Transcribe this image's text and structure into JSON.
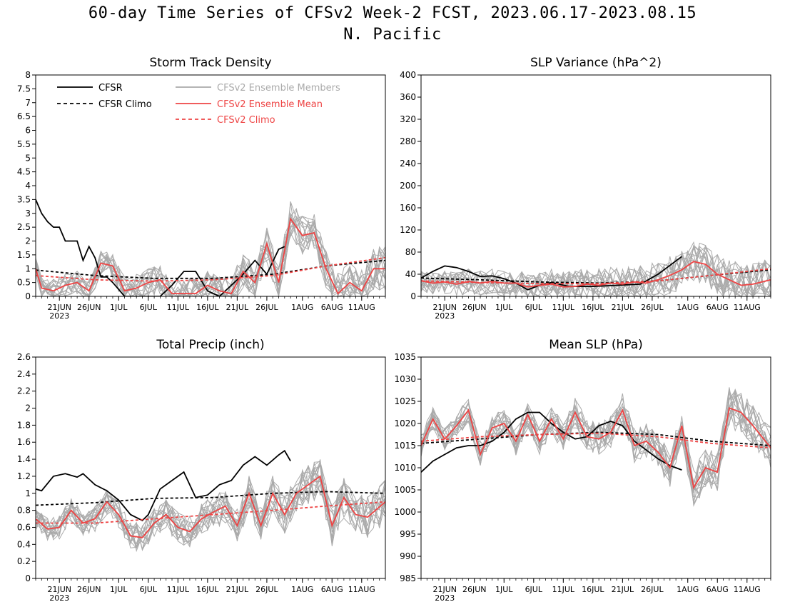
{
  "figure": {
    "title": "60-day Time Series of CFSv2 Week-2 FCST, 2023.06.17-2023.08.15",
    "region": "N. Pacific"
  },
  "colors": {
    "cfsr": "#000000",
    "cfsr_climo": "#000000",
    "members": "#aaaaaa",
    "ensemble_mean": "#ee4444",
    "cfsv2_climo": "#ee4444"
  },
  "legend": {
    "cfsr": "CFSR",
    "cfsr_climo": "CFSR Climo",
    "members": "CFSv2 Ensemble Members",
    "ensemble_mean": "CFSv2 Ensemble Mean",
    "cfsv2_climo": "CFSv2 Climo"
  },
  "x_axis": {
    "start_date": "2023-06-17",
    "end_date": "2023-08-15",
    "tick_labels": [
      "21JUN",
      "26JUN",
      "1JUL",
      "6JUL",
      "11JUL",
      "16JUL",
      "21JUL",
      "26JUL",
      "1AUG",
      "6AUG",
      "11AUG"
    ],
    "tick_dates": [
      "2023-06-21",
      "2023-06-26",
      "2023-07-01",
      "2023-07-06",
      "2023-07-11",
      "2023-07-16",
      "2023-07-21",
      "2023-07-26",
      "2023-08-01",
      "2023-08-06",
      "2023-08-11"
    ],
    "year_label": "2023"
  },
  "chart_data": [
    {
      "type": "line",
      "title": "Storm Track Density",
      "ylim": [
        0,
        8
      ],
      "yticks": [
        "0",
        "0.5",
        "1",
        "1.5",
        "2",
        "2.5",
        "3",
        "3.5",
        "4",
        "4.5",
        "5",
        "5.5",
        "6",
        "6.5",
        "7",
        "7.5",
        "8"
      ],
      "grid": false,
      "legend_placement": "top-left",
      "series": [
        {
          "name": "CFSR",
          "style": "solid",
          "color": "#000000",
          "x": [
            "2023-06-17",
            "2023-06-18",
            "2023-06-19",
            "2023-06-20",
            "2023-06-21",
            "2023-06-22",
            "2023-06-23",
            "2023-06-24",
            "2023-06-25",
            "2023-06-26",
            "2023-06-27",
            "2023-06-28",
            "2023-06-29",
            "2023-06-30",
            "2023-07-02",
            "2023-07-04",
            "2023-07-06",
            "2023-07-08",
            "2023-07-10",
            "2023-07-12",
            "2023-07-14",
            "2023-07-16",
            "2023-07-18",
            "2023-07-20",
            "2023-07-22",
            "2023-07-24",
            "2023-07-26",
            "2023-07-28",
            "2023-07-29"
          ],
          "y": [
            3.5,
            3.0,
            2.7,
            2.5,
            2.5,
            2.0,
            2.0,
            2.0,
            1.3,
            1.8,
            1.4,
            0.7,
            0.7,
            0.5,
            0.0,
            0.0,
            0.0,
            0.0,
            0.4,
            0.9,
            0.9,
            0.2,
            0.0,
            0.4,
            0.8,
            1.3,
            0.8,
            1.7,
            1.8
          ]
        },
        {
          "name": "CFSR Climo",
          "style": "dashed",
          "color": "#000000",
          "x": [
            "2023-06-17",
            "2023-06-27",
            "2023-07-07",
            "2023-07-17",
            "2023-07-27",
            "2023-08-05",
            "2023-08-15"
          ],
          "y": [
            0.95,
            0.75,
            0.65,
            0.65,
            0.8,
            1.1,
            1.3
          ]
        },
        {
          "name": "CFSv2 Ensemble Mean",
          "style": "solid",
          "color": "#ee4444",
          "x": [
            "2023-06-17",
            "2023-06-18",
            "2023-06-20",
            "2023-06-22",
            "2023-06-24",
            "2023-06-26",
            "2023-06-28",
            "2023-06-30",
            "2023-07-02",
            "2023-07-04",
            "2023-07-06",
            "2023-07-08",
            "2023-07-10",
            "2023-07-12",
            "2023-07-14",
            "2023-07-16",
            "2023-07-18",
            "2023-07-20",
            "2023-07-22",
            "2023-07-24",
            "2023-07-26",
            "2023-07-28",
            "2023-07-30",
            "2023-08-01",
            "2023-08-03",
            "2023-08-05",
            "2023-08-07",
            "2023-08-09",
            "2023-08-11",
            "2023-08-13",
            "2023-08-15"
          ],
          "y": [
            1.0,
            0.3,
            0.2,
            0.4,
            0.5,
            0.2,
            1.2,
            1.1,
            0.2,
            0.3,
            0.5,
            0.6,
            0.1,
            0.1,
            0.1,
            0.4,
            0.2,
            0.1,
            0.9,
            0.5,
            1.9,
            0.5,
            2.8,
            2.2,
            2.3,
            1.0,
            0.1,
            0.5,
            0.2,
            1.0,
            1.0
          ]
        },
        {
          "name": "CFSv2 Climo",
          "style": "dashed",
          "color": "#ee4444",
          "x": [
            "2023-06-17",
            "2023-06-27",
            "2023-07-07",
            "2023-07-17",
            "2023-07-27",
            "2023-08-05",
            "2023-08-15"
          ],
          "y": [
            0.75,
            0.6,
            0.55,
            0.6,
            0.75,
            1.1,
            1.4
          ]
        }
      ]
    },
    {
      "type": "line",
      "title": "SLP Variance (hPa^2)",
      "ylim": [
        0,
        400
      ],
      "yticks": [
        "0",
        "40",
        "80",
        "120",
        "160",
        "200",
        "240",
        "280",
        "320",
        "360",
        "400"
      ],
      "grid": false,
      "series": [
        {
          "name": "CFSR",
          "style": "solid",
          "color": "#000000",
          "x": [
            "2023-06-17",
            "2023-06-19",
            "2023-06-21",
            "2023-06-23",
            "2023-06-25",
            "2023-06-27",
            "2023-06-29",
            "2023-07-01",
            "2023-07-03",
            "2023-07-05",
            "2023-07-07",
            "2023-07-09",
            "2023-07-12",
            "2023-07-16",
            "2023-07-20",
            "2023-07-24",
            "2023-07-27",
            "2023-07-31"
          ],
          "y": [
            33,
            45,
            55,
            52,
            45,
            36,
            37,
            32,
            24,
            12,
            20,
            25,
            18,
            18,
            20,
            22,
            40,
            72
          ]
        },
        {
          "name": "CFSR Climo",
          "style": "dashed",
          "color": "#000000",
          "x": [
            "2023-06-17",
            "2023-06-27",
            "2023-07-07",
            "2023-07-17",
            "2023-07-27",
            "2023-08-05",
            "2023-08-15"
          ],
          "y": [
            33,
            30,
            26,
            24,
            28,
            38,
            48
          ]
        },
        {
          "name": "CFSv2 Ensemble Mean",
          "style": "solid",
          "color": "#ee4444",
          "x": [
            "2023-06-17",
            "2023-06-19",
            "2023-06-21",
            "2023-06-23",
            "2023-06-25",
            "2023-06-27",
            "2023-06-29",
            "2023-07-01",
            "2023-07-03",
            "2023-07-05",
            "2023-07-07",
            "2023-07-09",
            "2023-07-11",
            "2023-07-13",
            "2023-07-15",
            "2023-07-17",
            "2023-07-19",
            "2023-07-21",
            "2023-07-23",
            "2023-07-25",
            "2023-07-27",
            "2023-07-29",
            "2023-07-31",
            "2023-08-02",
            "2023-08-04",
            "2023-08-06",
            "2023-08-08",
            "2023-08-10",
            "2023-08-12",
            "2023-08-15"
          ],
          "y": [
            28,
            24,
            26,
            22,
            27,
            24,
            27,
            24,
            24,
            17,
            20,
            22,
            17,
            18,
            22,
            20,
            24,
            22,
            26,
            24,
            30,
            38,
            48,
            63,
            58,
            40,
            30,
            20,
            22,
            30
          ]
        },
        {
          "name": "CFSv2 Climo",
          "style": "dashed",
          "color": "#ee4444",
          "x": [
            "2023-06-17",
            "2023-06-27",
            "2023-07-07",
            "2023-07-17",
            "2023-07-27",
            "2023-08-05",
            "2023-08-15"
          ],
          "y": [
            28,
            25,
            23,
            23,
            28,
            38,
            50
          ]
        }
      ]
    },
    {
      "type": "line",
      "title": "Total Precip (inch)",
      "ylim": [
        0,
        2.6
      ],
      "yticks": [
        "0",
        "0.2",
        "0.4",
        "0.6",
        "0.8",
        "1",
        "1.2",
        "1.4",
        "1.6",
        "1.8",
        "2",
        "2.2",
        "2.4",
        "2.6"
      ],
      "grid": false,
      "series": [
        {
          "name": "CFSR",
          "style": "solid",
          "color": "#000000",
          "x": [
            "2023-06-17",
            "2023-06-18",
            "2023-06-20",
            "2023-06-22",
            "2023-06-24",
            "2023-06-25",
            "2023-06-27",
            "2023-06-29",
            "2023-07-01",
            "2023-07-03",
            "2023-07-05",
            "2023-07-06",
            "2023-07-08",
            "2023-07-10",
            "2023-07-12",
            "2023-07-14",
            "2023-07-16",
            "2023-07-18",
            "2023-07-20",
            "2023-07-22",
            "2023-07-24",
            "2023-07-26",
            "2023-07-28",
            "2023-07-29",
            "2023-07-30"
          ],
          "y": [
            1.05,
            1.03,
            1.2,
            1.23,
            1.19,
            1.23,
            1.1,
            1.03,
            0.92,
            0.75,
            0.68,
            0.75,
            1.05,
            1.15,
            1.25,
            0.95,
            0.98,
            1.1,
            1.15,
            1.33,
            1.43,
            1.33,
            1.45,
            1.5,
            1.38
          ]
        },
        {
          "name": "CFSR Climo",
          "style": "dashed",
          "color": "#000000",
          "x": [
            "2023-06-17",
            "2023-06-27",
            "2023-07-07",
            "2023-07-17",
            "2023-07-27",
            "2023-08-05",
            "2023-08-15"
          ],
          "y": [
            0.86,
            0.89,
            0.94,
            0.95,
            1.0,
            1.02,
            1.0
          ]
        },
        {
          "name": "CFSv2 Ensemble Mean",
          "style": "solid",
          "color": "#ee4444",
          "x": [
            "2023-06-17",
            "2023-06-19",
            "2023-06-21",
            "2023-06-23",
            "2023-06-25",
            "2023-06-27",
            "2023-06-29",
            "2023-07-01",
            "2023-07-03",
            "2023-07-05",
            "2023-07-07",
            "2023-07-09",
            "2023-07-11",
            "2023-07-13",
            "2023-07-15",
            "2023-07-17",
            "2023-07-19",
            "2023-07-21",
            "2023-07-23",
            "2023-07-25",
            "2023-07-27",
            "2023-07-29",
            "2023-07-31",
            "2023-08-02",
            "2023-08-04",
            "2023-08-06",
            "2023-08-08",
            "2023-08-10",
            "2023-08-12",
            "2023-08-15"
          ],
          "y": [
            0.7,
            0.58,
            0.6,
            0.8,
            0.65,
            0.7,
            0.9,
            0.75,
            0.5,
            0.48,
            0.65,
            0.75,
            0.6,
            0.55,
            0.7,
            0.78,
            0.85,
            0.62,
            1.0,
            0.62,
            1.0,
            0.75,
            1.0,
            1.1,
            1.2,
            0.62,
            0.95,
            0.75,
            0.72,
            0.9
          ]
        },
        {
          "name": "CFSv2 Climo",
          "style": "dashed",
          "color": "#ee4444",
          "x": [
            "2023-06-17",
            "2023-06-27",
            "2023-07-07",
            "2023-07-17",
            "2023-07-27",
            "2023-08-05",
            "2023-08-15"
          ],
          "y": [
            0.65,
            0.65,
            0.7,
            0.75,
            0.8,
            0.85,
            0.9
          ]
        }
      ]
    },
    {
      "type": "line",
      "title": "Mean SLP (hPa)",
      "ylim": [
        985,
        1035
      ],
      "yticks": [
        "985",
        "990",
        "995",
        "1000",
        "1005",
        "1010",
        "1015",
        "1020",
        "1025",
        "1030",
        "1035"
      ],
      "grid": false,
      "series": [
        {
          "name": "CFSR",
          "style": "solid",
          "color": "#000000",
          "x": [
            "2023-06-17",
            "2023-06-19",
            "2023-06-21",
            "2023-06-23",
            "2023-06-25",
            "2023-06-27",
            "2023-06-29",
            "2023-07-01",
            "2023-07-03",
            "2023-07-05",
            "2023-07-07",
            "2023-07-09",
            "2023-07-11",
            "2023-07-13",
            "2023-07-15",
            "2023-07-17",
            "2023-07-19",
            "2023-07-21",
            "2023-07-23",
            "2023-07-25",
            "2023-07-27",
            "2023-07-29",
            "2023-07-31"
          ],
          "y": [
            1009,
            1011.5,
            1013,
            1014.5,
            1015,
            1015,
            1016,
            1018,
            1021,
            1022.5,
            1022.5,
            1020,
            1018,
            1016.5,
            1017,
            1019.5,
            1020.5,
            1019.5,
            1016,
            1014,
            1012,
            1010.5,
            1009.5
          ]
        },
        {
          "name": "CFSR Climo",
          "style": "dashed",
          "color": "#000000",
          "x": [
            "2023-06-17",
            "2023-06-27",
            "2023-07-07",
            "2023-07-17",
            "2023-07-27",
            "2023-08-05",
            "2023-08-15"
          ],
          "y": [
            1015.5,
            1016.5,
            1017.5,
            1018,
            1017.5,
            1016,
            1015
          ]
        },
        {
          "name": "CFSv2 Ensemble Mean",
          "style": "solid",
          "color": "#ee4444",
          "x": [
            "2023-06-17",
            "2023-06-19",
            "2023-06-21",
            "2023-06-23",
            "2023-06-25",
            "2023-06-27",
            "2023-06-29",
            "2023-07-01",
            "2023-07-03",
            "2023-07-05",
            "2023-07-07",
            "2023-07-09",
            "2023-07-11",
            "2023-07-13",
            "2023-07-15",
            "2023-07-17",
            "2023-07-19",
            "2023-07-21",
            "2023-07-23",
            "2023-07-25",
            "2023-07-27",
            "2023-07-29",
            "2023-07-31",
            "2023-08-02",
            "2023-08-04",
            "2023-08-06",
            "2023-08-08",
            "2023-08-10",
            "2023-08-12",
            "2023-08-15"
          ],
          "y": [
            1015,
            1021,
            1016.5,
            1019.5,
            1023,
            1013,
            1019,
            1020,
            1016,
            1022,
            1016,
            1021,
            1016.5,
            1022.5,
            1017,
            1016.5,
            1018,
            1023,
            1015,
            1016,
            1013.5,
            1010,
            1019.5,
            1005.5,
            1010,
            1009,
            1023.5,
            1022.5,
            1019.5,
            1014.5
          ]
        },
        {
          "name": "CFSv2 Climo",
          "style": "dashed",
          "color": "#ee4444",
          "x": [
            "2023-06-17",
            "2023-06-27",
            "2023-07-07",
            "2023-07-17",
            "2023-07-27",
            "2023-08-05",
            "2023-08-15"
          ],
          "y": [
            1016,
            1017,
            1017.5,
            1017.8,
            1017,
            1015.5,
            1014.5
          ]
        }
      ]
    }
  ]
}
